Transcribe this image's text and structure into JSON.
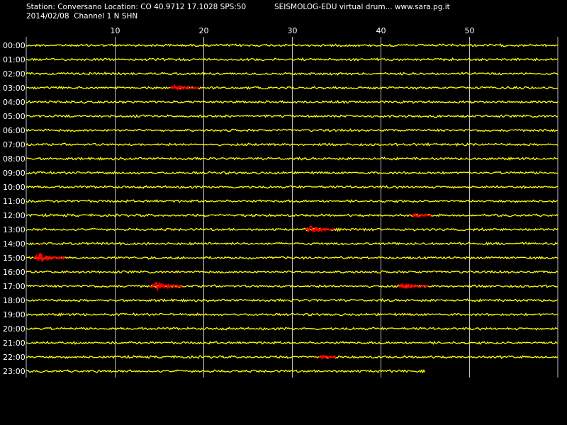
{
  "header": {
    "station_line": "Station: Conversano Location: CO 40.9712 17.1028 SPS:50",
    "date_line": "2014/02/08  Channel 1 N SHN",
    "credit": "SEISMOLOG-EDU virtual drum... www.sara.pg.it"
  },
  "colors": {
    "background": "#000000",
    "trace": "#ffff00",
    "event": "#ff0000",
    "grid": "#c0c0c0",
    "text": "#ffffff"
  },
  "chart_data": {
    "type": "line",
    "title": "",
    "xlabel": "",
    "ylabel": "",
    "x_unit": "minutes",
    "xlim": [
      0,
      60
    ],
    "x_ticks": [
      10,
      20,
      30,
      40,
      50
    ],
    "grid": true,
    "rows": [
      {
        "label": "00:00",
        "end_minute": 60,
        "events": []
      },
      {
        "label": "01:00",
        "end_minute": 60,
        "events": []
      },
      {
        "label": "02:00",
        "end_minute": 60,
        "events": []
      },
      {
        "label": "03:00",
        "end_minute": 60,
        "events": [
          {
            "start": 16.3,
            "end": 19.5,
            "amp": 0.45
          }
        ]
      },
      {
        "label": "04:00",
        "end_minute": 60,
        "events": []
      },
      {
        "label": "05:00",
        "end_minute": 60,
        "events": []
      },
      {
        "label": "06:00",
        "end_minute": 60,
        "events": []
      },
      {
        "label": "07:00",
        "end_minute": 60,
        "events": []
      },
      {
        "label": "08:00",
        "end_minute": 60,
        "events": []
      },
      {
        "label": "09:00",
        "end_minute": 60,
        "events": []
      },
      {
        "label": "10:00",
        "end_minute": 60,
        "events": []
      },
      {
        "label": "11:00",
        "end_minute": 60,
        "events": []
      },
      {
        "label": "12:00",
        "end_minute": 60,
        "events": [
          {
            "start": 43.6,
            "end": 45.8,
            "amp": 0.35
          }
        ]
      },
      {
        "label": "13:00",
        "end_minute": 60,
        "events": [
          {
            "start": 31.5,
            "end": 34.8,
            "amp": 0.75
          }
        ]
      },
      {
        "label": "14:00",
        "end_minute": 60,
        "events": []
      },
      {
        "label": "15:00",
        "end_minute": 60,
        "events": [
          {
            "start": 0.8,
            "end": 4.4,
            "amp": 1.0
          }
        ]
      },
      {
        "label": "16:00",
        "end_minute": 60,
        "events": []
      },
      {
        "label": "17:00",
        "end_minute": 60,
        "events": [
          {
            "start": 14.0,
            "end": 17.6,
            "amp": 1.0
          },
          {
            "start": 42.0,
            "end": 45.4,
            "amp": 0.55
          }
        ]
      },
      {
        "label": "18:00",
        "end_minute": 60,
        "events": []
      },
      {
        "label": "19:00",
        "end_minute": 60,
        "events": []
      },
      {
        "label": "20:00",
        "end_minute": 60,
        "events": []
      },
      {
        "label": "21:00",
        "end_minute": 60,
        "events": []
      },
      {
        "label": "22:00",
        "end_minute": 60,
        "events": [
          {
            "start": 33.0,
            "end": 35.0,
            "amp": 0.3
          }
        ]
      },
      {
        "label": "23:00",
        "end_minute": 45,
        "events": []
      }
    ]
  }
}
